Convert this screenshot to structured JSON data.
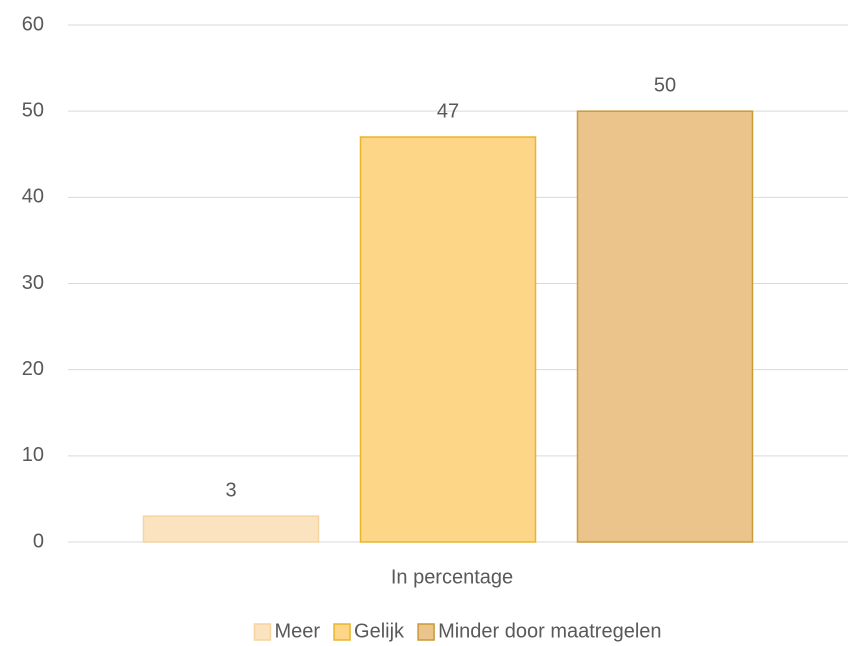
{
  "chart_data": {
    "type": "bar",
    "categories": [
      "In percentage"
    ],
    "series": [
      {
        "name": "Meer",
        "color": "#fbe3c0",
        "edgecolor": "#f5d4a0",
        "values": [
          3
        ]
      },
      {
        "name": "Gelijk",
        "color": "#fdd688",
        "edgecolor": "#e9b52c",
        "values": [
          47
        ]
      },
      {
        "name": "Minder door maatregelen",
        "color": "#ebc48c",
        "edgecolor": "#c99a35",
        "values": [
          50
        ]
      }
    ],
    "ylim": [
      0,
      60
    ],
    "yticks": [
      0,
      10,
      20,
      30,
      40,
      50,
      60
    ],
    "grid": true,
    "legend": "bottom"
  }
}
